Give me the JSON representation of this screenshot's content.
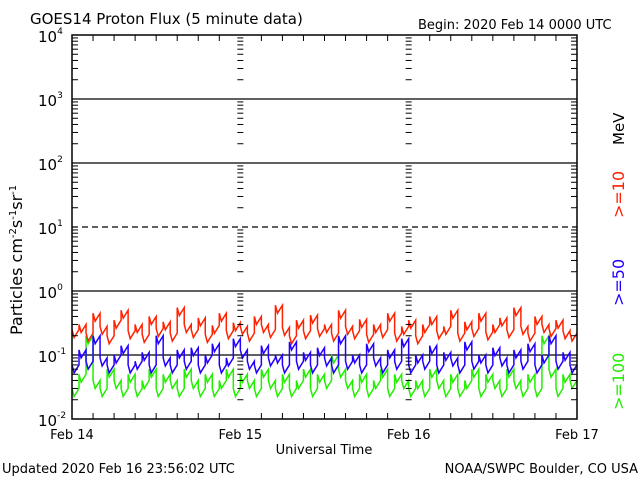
{
  "chart_data": {
    "type": "line",
    "title": "GOES14 Proton Flux (5 minute data)",
    "begin_label": "Begin: 2020 Feb 14 0000 UTC",
    "xlabel": "Universal Time",
    "ylabel_main": "Particles cm",
    "ylabel_sup1": "-2",
    "ylabel_s": "s",
    "ylabel_sup2": "-1",
    "ylabel_sr": "sr",
    "ylabel_sup3": "-1",
    "yscale": "log",
    "ylim": [
      0.01,
      10000
    ],
    "y_ticks": [
      {
        "base": "10",
        "exp": "4"
      },
      {
        "base": "10",
        "exp": "3"
      },
      {
        "base": "10",
        "exp": "2"
      },
      {
        "base": "10",
        "exp": "1"
      },
      {
        "base": "10",
        "exp": "0"
      },
      {
        "base": "10",
        "exp": "-1"
      },
      {
        "base": "10",
        "exp": "-2"
      }
    ],
    "x_range_hours": [
      0,
      72
    ],
    "x_ticks": [
      "Feb 14",
      "Feb 15",
      "Feb 16",
      "Feb 17"
    ],
    "unit_label": "MeV",
    "series": [
      {
        "name": ">=10",
        "color": "#ff2200",
        "values": [
          0.25,
          0.3,
          0.22,
          0.45,
          0.28,
          0.2,
          0.35,
          0.5,
          0.24,
          0.3,
          0.21,
          0.4,
          0.26,
          0.33,
          0.22,
          0.55,
          0.3,
          0.25,
          0.38,
          0.21,
          0.29,
          0.45,
          0.24,
          0.32,
          0.28,
          0.22,
          0.4,
          0.3,
          0.25,
          0.6,
          0.27,
          0.2,
          0.35,
          0.24,
          0.42,
          0.26,
          0.3,
          0.22,
          0.5,
          0.28,
          0.24,
          0.36,
          0.21,
          0.3,
          0.25,
          0.45,
          0.22,
          0.28,
          0.35,
          0.2,
          0.3,
          0.4,
          0.24,
          0.28,
          0.5,
          0.22,
          0.33,
          0.26,
          0.45,
          0.23,
          0.3,
          0.38,
          0.25,
          0.55,
          0.28,
          0.22,
          0.4,
          0.3,
          0.26,
          0.35,
          0.24,
          0.22
        ]
      },
      {
        "name": ">=50",
        "color": "#2200ff",
        "values": [
          0.07,
          0.12,
          0.08,
          0.2,
          0.09,
          0.07,
          0.1,
          0.14,
          0.07,
          0.08,
          0.11,
          0.07,
          0.2,
          0.09,
          0.07,
          0.12,
          0.08,
          0.13,
          0.07,
          0.1,
          0.15,
          0.07,
          0.09,
          0.18,
          0.12,
          0.08,
          0.07,
          0.14,
          0.09,
          0.1,
          0.07,
          0.16,
          0.08,
          0.11,
          0.07,
          0.13,
          0.09,
          0.07,
          0.2,
          0.08,
          0.1,
          0.07,
          0.15,
          0.09,
          0.07,
          0.12,
          0.08,
          0.18,
          0.07,
          0.1,
          0.08,
          0.14,
          0.07,
          0.11,
          0.09,
          0.07,
          0.16,
          0.08,
          0.1,
          0.07,
          0.13,
          0.09,
          0.07,
          0.12,
          0.08,
          0.15,
          0.07,
          0.1,
          0.2,
          0.08,
          0.11,
          0.07
        ]
      },
      {
        "name": ">=100",
        "color": "#22ee00",
        "values": [
          0.03,
          0.05,
          0.2,
          0.04,
          0.03,
          0.06,
          0.04,
          0.03,
          0.05,
          0.03,
          0.04,
          0.06,
          0.03,
          0.05,
          0.04,
          0.03,
          0.06,
          0.04,
          0.03,
          0.05,
          0.03,
          0.04,
          0.06,
          0.03,
          0.05,
          0.04,
          0.03,
          0.06,
          0.04,
          0.03,
          0.05,
          0.03,
          0.04,
          0.06,
          0.03,
          0.05,
          0.04,
          0.1,
          0.06,
          0.04,
          0.03,
          0.05,
          0.03,
          0.04,
          0.06,
          0.03,
          0.05,
          0.04,
          0.03,
          0.04,
          0.03,
          0.06,
          0.04,
          0.03,
          0.05,
          0.03,
          0.04,
          0.06,
          0.03,
          0.05,
          0.04,
          0.03,
          0.06,
          0.04,
          0.03,
          0.05,
          0.03,
          0.2,
          0.06,
          0.03,
          0.05,
          0.04
        ]
      }
    ]
  },
  "footer": {
    "updated": "Updated 2020 Feb 16 23:56:02 UTC",
    "credit": "NOAA/SWPC Boulder, CO USA"
  }
}
